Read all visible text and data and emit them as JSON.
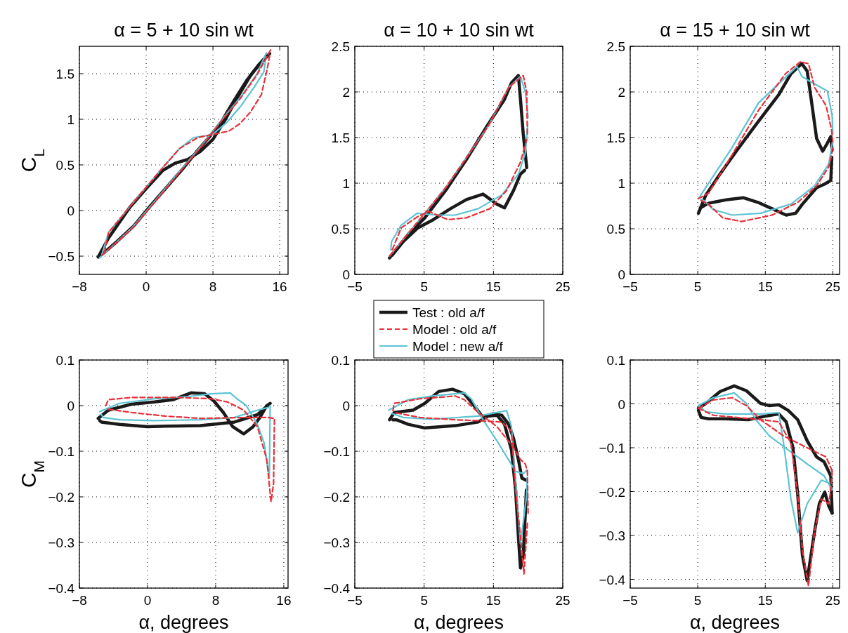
{
  "chart_data": [
    {
      "type": "line",
      "title": "α = 5 + 10 sin wt",
      "ylabel": "C$_{L}$",
      "xlim": [
        -8,
        17
      ],
      "xticks": [
        -8,
        0,
        8,
        16
      ],
      "ylim": [
        -0.7,
        1.8
      ],
      "yticks": [
        -0.5,
        0,
        0.5,
        1,
        1.5
      ],
      "grid": true,
      "series": [
        {
          "color": "#1a1a1a",
          "line_style": "solid",
          "x": [
            -5.75,
            -4.5,
            -2,
            0,
            2,
            3.5,
            5,
            6.5,
            8,
            9.5,
            11,
            12.5,
            14,
            14.8
          ],
          "values": [
            -0.51,
            -0.3,
            0.03,
            0.24,
            0.44,
            0.52,
            0.56,
            0.65,
            0.78,
            1.0,
            1.25,
            1.48,
            1.65,
            1.72
          ]
        },
        {
          "color": "#1a1a1a",
          "line_style": "solid",
          "x": [
            14.5,
            13.5,
            12,
            10.5,
            9,
            7.5,
            6,
            4.5,
            2.5,
            0.5,
            -1.5,
            -3.5,
            -5,
            -5.45
          ],
          "values": [
            1.69,
            1.6,
            1.42,
            1.2,
            0.97,
            0.8,
            0.64,
            0.47,
            0.26,
            0.05,
            -0.17,
            -0.34,
            -0.46,
            -0.49
          ]
        },
        {
          "color": "#e8303a",
          "line_style": "dashed",
          "x": [
            -5.3,
            -1.7,
            1.2,
            4,
            6.8,
            9,
            11.3,
            13.3,
            14.9
          ],
          "values": [
            -0.49,
            -0.2,
            0.11,
            0.42,
            0.72,
            0.98,
            1.23,
            1.49,
            1.76
          ]
        },
        {
          "color": "#e8303a",
          "line_style": "dashed",
          "x": [
            14.8,
            14.5,
            13.8,
            12.5,
            11.2,
            9.9,
            8.3,
            6.2,
            4,
            1.7,
            -1.7,
            -4.5,
            -5
          ],
          "values": [
            1.7,
            1.55,
            1.27,
            1.08,
            0.95,
            0.87,
            0.84,
            0.8,
            0.68,
            0.44,
            0.07,
            -0.24,
            -0.46
          ]
        },
        {
          "color": "#5bc4d4",
          "line_style": "solid",
          "x": [
            -5.6,
            -1.7,
            1.2,
            4,
            6.8,
            9,
            11.3,
            13.3,
            14.4
          ],
          "values": [
            -0.52,
            -0.19,
            0.12,
            0.43,
            0.73,
            0.99,
            1.24,
            1.5,
            1.73
          ]
        },
        {
          "color": "#5bc4d4",
          "line_style": "solid",
          "x": [
            14.35,
            14.1,
            13,
            11.3,
            9.6,
            7.9,
            5.7,
            4,
            1.7,
            -1.7,
            -4.5,
            -5.3
          ],
          "values": [
            1.68,
            1.52,
            1.36,
            1.14,
            0.96,
            0.83,
            0.8,
            0.68,
            0.44,
            0.07,
            -0.24,
            -0.48
          ]
        }
      ]
    },
    {
      "type": "line",
      "title": "α = 10 + 10 sin wt",
      "xlim": [
        -5,
        25
      ],
      "xticks": [
        -5,
        5,
        15,
        25
      ],
      "ylim": [
        0,
        2.5
      ],
      "yticks": [
        0,
        0.5,
        1,
        1.5,
        2,
        2.5
      ],
      "grid": true,
      "series": [
        {
          "color": "#1a1a1a",
          "line_style": "solid",
          "x": [
            0,
            2.7,
            5.1,
            8.1,
            11.1,
            14.2,
            16.6,
            17.6,
            18.6,
            18.9,
            19.3,
            19.8
          ],
          "values": [
            0.18,
            0.44,
            0.62,
            0.92,
            1.26,
            1.64,
            1.92,
            2.1,
            2.18,
            1.92,
            1.54,
            1.17
          ]
        },
        {
          "color": "#1a1a1a",
          "line_style": "solid",
          "x": [
            19.5,
            18.9,
            17.9,
            16.6,
            15.5,
            13.5,
            11.1,
            8.8,
            6.1,
            4.1,
            2,
            0.4
          ],
          "values": [
            1.14,
            1.1,
            0.92,
            0.73,
            0.77,
            0.88,
            0.82,
            0.72,
            0.59,
            0.51,
            0.36,
            0.21
          ]
        },
        {
          "color": "#e8303a",
          "line_style": "dashed",
          "x": [
            0,
            5.1,
            8.1,
            14.2,
            17.2,
            19.3,
            19.8,
            19.9
          ],
          "values": [
            0.2,
            0.67,
            0.95,
            1.62,
            2.05,
            2.18,
            2.0,
            1.54
          ]
        },
        {
          "color": "#e8303a",
          "line_style": "dashed",
          "x": [
            19.8,
            18.9,
            16.9,
            14.5,
            11.1,
            8.4,
            5.7,
            4,
            1.7,
            0.4
          ],
          "values": [
            1.48,
            1.23,
            0.92,
            0.72,
            0.62,
            0.6,
            0.69,
            0.63,
            0.51,
            0.27
          ]
        },
        {
          "color": "#5bc4d4",
          "line_style": "solid",
          "x": [
            0,
            5.1,
            8.1,
            14.2,
            17.2,
            18.9,
            19.6,
            20
          ],
          "values": [
            0.2,
            0.67,
            0.95,
            1.62,
            2.05,
            2.17,
            2.0,
            1.72
          ]
        },
        {
          "color": "#5bc4d4",
          "line_style": "solid",
          "x": [
            19.95,
            19.6,
            18.6,
            16.2,
            12.8,
            9.5,
            6.8,
            4,
            1.7,
            0.3,
            0.2
          ],
          "values": [
            1.65,
            1.33,
            1.1,
            0.87,
            0.72,
            0.65,
            0.65,
            0.67,
            0.54,
            0.36,
            0.27
          ]
        }
      ]
    },
    {
      "type": "line",
      "title": "α = 15 + 10 sin wt",
      "xlim": [
        -5,
        26
      ],
      "xticks": [
        -5,
        5,
        15,
        25
      ],
      "ylim": [
        0,
        2.5
      ],
      "yticks": [
        0,
        0.5,
        1,
        1.5,
        2,
        2.5
      ],
      "grid": true,
      "series": [
        {
          "color": "#1a1a1a",
          "line_style": "solid",
          "x": [
            5.1,
            6.2,
            8.3,
            10.8,
            13.6,
            17,
            18.8,
            20.4,
            21.2,
            21.8,
            22.6,
            23.5,
            24.2,
            24.7,
            24.9
          ],
          "values": [
            0.67,
            0.87,
            1.1,
            1.36,
            1.64,
            1.97,
            2.2,
            2.31,
            2.23,
            1.92,
            1.49,
            1.35,
            1.44,
            1.51,
            1.36
          ]
        },
        {
          "color": "#1a1a1a",
          "line_style": "solid",
          "x": [
            24.85,
            24.7,
            23.8,
            22.6,
            20.5,
            19.5,
            18.1,
            16,
            13.9,
            11.8,
            9.4,
            6.6,
            5.4
          ],
          "values": [
            1.28,
            1.03,
            0.99,
            0.95,
            0.77,
            0.67,
            0.65,
            0.72,
            0.79,
            0.84,
            0.82,
            0.78,
            0.73
          ]
        },
        {
          "color": "#e8303a",
          "line_style": "dashed",
          "x": [
            5.1,
            6.6,
            10,
            14,
            18,
            20.2,
            21.4,
            22.3,
            24,
            24.8,
            25
          ],
          "values": [
            0.83,
            0.89,
            1.3,
            1.8,
            2.2,
            2.33,
            2.31,
            2.05,
            1.85,
            1.59,
            1.45
          ]
        },
        {
          "color": "#e8303a",
          "line_style": "dashed",
          "x": [
            24.95,
            24.8,
            24.4,
            22.6,
            19.8,
            16,
            11.5,
            8.7,
            6.6,
            5.5
          ],
          "values": [
            1.38,
            1.3,
            1.18,
            0.97,
            0.79,
            0.65,
            0.58,
            0.62,
            0.77,
            0.81
          ]
        },
        {
          "color": "#5bc4d4",
          "line_style": "solid",
          "x": [
            5.1,
            10,
            14,
            19.7,
            20.4,
            22,
            24.2,
            24.9,
            25
          ],
          "values": [
            0.83,
            1.38,
            1.88,
            2.28,
            2.17,
            2.1,
            2.01,
            1.74,
            1.54
          ]
        },
        {
          "color": "#5bc4d4",
          "line_style": "solid",
          "x": [
            24.95,
            24.4,
            22.3,
            18.8,
            14.3,
            10.1,
            7.3,
            5.9,
            5.5
          ],
          "values": [
            1.45,
            1.21,
            0.97,
            0.77,
            0.67,
            0.65,
            0.71,
            0.81,
            0.82
          ]
        }
      ]
    },
    {
      "type": "line",
      "xlabel": "α, degrees",
      "ylabel": "C$_{M}$",
      "xlim": [
        -8,
        16.5
      ],
      "xticks": [
        -8,
        0,
        8,
        16
      ],
      "ylim": [
        -0.4,
        0.1
      ],
      "yticks": [
        -0.4,
        -0.3,
        -0.2,
        -0.1,
        0,
        0.1
      ],
      "grid": true,
      "series": [
        {
          "color": "#1a1a1a",
          "line_style": "solid",
          "x": [
            -5.8,
            -4.6,
            -1.9,
            0.8,
            3,
            5.1,
            6.7,
            7.8,
            8.9,
            10,
            11.3,
            12.4,
            13.2,
            14,
            14.4
          ],
          "values": [
            -0.028,
            -0.01,
            0.003,
            0.008,
            0.013,
            0.028,
            0.026,
            0.01,
            -0.015,
            -0.046,
            -0.062,
            -0.046,
            -0.026,
            0,
            0.005
          ]
        },
        {
          "color": "#1a1a1a",
          "line_style": "solid",
          "x": [
            14.1,
            12.9,
            10.2,
            6.2,
            2.1,
            0,
            -3.3,
            -5.4,
            -5.6
          ],
          "values": [
            0,
            -0.02,
            -0.036,
            -0.044,
            -0.045,
            -0.046,
            -0.041,
            -0.036,
            -0.033
          ]
        },
        {
          "color": "#e8303a",
          "line_style": "dashed",
          "x": [
            -4.9,
            -4.6,
            -1.9,
            3.5,
            7.5,
            9.4,
            11.3,
            12.9,
            14,
            14.5
          ],
          "values": [
            0,
            0.013,
            0.018,
            0.018,
            0.015,
            0.008,
            -0.01,
            -0.046,
            -0.118,
            -0.21
          ]
        },
        {
          "color": "#e8303a",
          "line_style": "dashed",
          "x": [
            14.55,
            14.8,
            14.9
          ],
          "values": [
            -0.205,
            -0.17,
            -0.031
          ]
        },
        {
          "color": "#e8303a",
          "line_style": "dashed",
          "x": [
            14.75,
            14.2,
            11.6,
            6.2,
            2.1,
            -1.9,
            -4.6
          ],
          "values": [
            -0.028,
            -0.026,
            -0.026,
            -0.028,
            -0.023,
            -0.015,
            -0.008
          ]
        },
        {
          "color": "#5bc4d4",
          "line_style": "solid",
          "x": [
            -5.6,
            -3.3,
            0.8,
            4.8,
            7.5,
            9.7,
            10.5,
            11.6,
            12.9,
            13.7,
            14.3,
            14.4
          ],
          "values": [
            -0.013,
            0.005,
            0.015,
            0.02,
            0.026,
            0.028,
            0.015,
            0,
            -0.041,
            -0.082,
            -0.159,
            0
          ]
        },
        {
          "color": "#5bc4d4",
          "line_style": "solid",
          "x": [
            14.2,
            12.9,
            10.2,
            6.2,
            0.8,
            -3.3,
            -5.2,
            -5.45
          ],
          "values": [
            -0.004,
            -0.01,
            -0.026,
            -0.031,
            -0.033,
            -0.031,
            -0.026,
            -0.019
          ]
        }
      ]
    },
    {
      "type": "line",
      "xlabel": "α, degrees",
      "xlim": [
        -5,
        25
      ],
      "xticks": [
        -5,
        5,
        15,
        25
      ],
      "ylim": [
        -0.4,
        0.1
      ],
      "yticks": [
        -0.4,
        -0.3,
        -0.2,
        -0.1,
        0,
        0.1
      ],
      "grid": true,
      "legend": "top",
      "series": [
        {
          "name": "Test : old a/f",
          "color": "#1a1a1a",
          "line_style": "solid",
          "x": [
            0,
            0.7,
            3.4,
            5.1,
            7.1,
            9.1,
            10.8,
            12.2,
            13.5,
            14.9,
            16.2,
            17.2,
            17.9,
            18.6,
            19.1,
            19.8
          ],
          "values": [
            -0.031,
            -0.015,
            -0.01,
            0.005,
            0.031,
            0.036,
            0.026,
            0,
            -0.026,
            -0.018,
            -0.021,
            -0.041,
            -0.072,
            -0.118,
            -0.159,
            -0.164
          ]
        },
        {
          "color": "#1a1a1a",
          "line_style": "solid",
          "x": [
            19.75,
            19.6,
            19.3,
            18.9,
            18.6,
            18.2,
            17.6,
            16.6,
            15.5,
            14.2,
            12.8,
            9.5,
            5.1,
            2.7,
            1,
            0.5
          ],
          "values": [
            -0.185,
            -0.236,
            -0.328,
            -0.356,
            -0.287,
            -0.185,
            -0.097,
            -0.041,
            -0.021,
            -0.023,
            -0.036,
            -0.044,
            -0.049,
            -0.041,
            -0.031,
            -0.031
          ]
        },
        {
          "name": "Model : old a/f",
          "color": "#e8303a",
          "line_style": "dashed",
          "x": [
            0.5,
            0.7,
            4.4,
            9.5,
            10.8,
            12.8,
            15.5,
            17.9,
            18.9,
            19.6,
            19.9,
            20
          ],
          "values": [
            -0.011,
            0.005,
            0.015,
            0.021,
            0.013,
            -0.015,
            -0.046,
            -0.092,
            -0.118,
            -0.128,
            -0.144,
            -0.236
          ]
        },
        {
          "color": "#e8303a",
          "line_style": "dashed",
          "x": [
            19.9,
            19.4,
            18.9,
            18.2,
            17.6,
            16.2,
            12.8,
            9.5,
            4.4,
            1
          ],
          "values": [
            -0.258,
            -0.369,
            -0.287,
            -0.185,
            -0.056,
            -0.036,
            -0.033,
            -0.031,
            -0.026,
            -0.016
          ]
        },
        {
          "name": "Model : new a/f",
          "color": "#5bc4d4",
          "line_style": "solid",
          "x": [
            -0.1,
            2.7,
            6.1,
            10.8,
            11.8,
            13.5,
            15.5,
            18.2,
            19.3,
            19.9
          ],
          "values": [
            -0.01,
            0.013,
            0.021,
            0.028,
            0.015,
            -0.031,
            -0.077,
            -0.144,
            -0.149,
            -0.141
          ]
        },
        {
          "color": "#5bc4d4",
          "line_style": "solid",
          "x": [
            19.87,
            19.8,
            18.9,
            18.2,
            17.6,
            16.9,
            12.8,
            6.1,
            2,
            0.3
          ],
          "values": [
            -0.157,
            -0.195,
            -0.303,
            -0.164,
            -0.046,
            -0.011,
            -0.023,
            -0.03,
            -0.026,
            -0.017
          ]
        }
      ]
    },
    {
      "type": "line",
      "xlabel": "α, degrees",
      "xlim": [
        -5,
        26
      ],
      "xticks": [
        -5,
        5,
        15,
        25
      ],
      "ylim": [
        -0.42,
        0.1
      ],
      "yticks": [
        -0.4,
        -0.3,
        -0.2,
        -0.1,
        0,
        0.1
      ],
      "grid": true,
      "series": [
        {
          "color": "#1a1a1a",
          "line_style": "solid",
          "x": [
            5.1,
            6.2,
            8.3,
            10.4,
            12.2,
            14.3,
            15.6,
            17,
            18.4,
            19.8,
            21.2,
            22.6,
            23.7,
            24.7,
            24.9
          ],
          "values": [
            -0.01,
            0.001,
            0.028,
            0.041,
            0.03,
            0.001,
            -0.004,
            -0.002,
            -0.015,
            -0.036,
            -0.084,
            -0.121,
            -0.132,
            -0.164,
            -0.249
          ]
        },
        {
          "color": "#1a1a1a",
          "line_style": "solid",
          "x": [
            24.9,
            24.4,
            23.8,
            23,
            22.3,
            21.2,
            20.5,
            19.8,
            19.1,
            18.1,
            17,
            15,
            12.5,
            9,
            6.6,
            5.5,
            5.1
          ],
          "values": [
            -0.249,
            -0.233,
            -0.201,
            -0.228,
            -0.291,
            -0.403,
            -0.345,
            -0.206,
            -0.1,
            -0.041,
            -0.023,
            -0.028,
            -0.036,
            -0.034,
            -0.034,
            -0.031,
            -0.015
          ]
        },
        {
          "color": "#e8303a",
          "line_style": "dashed",
          "x": [
            5.1,
            7.3,
            10.1,
            12.2,
            14.3,
            17.7,
            21.2,
            24,
            24.9
          ],
          "values": [
            -0.01,
            0.009,
            0.014,
            -0.004,
            -0.036,
            -0.073,
            -0.1,
            -0.121,
            -0.153
          ]
        },
        {
          "color": "#e8303a",
          "line_style": "dashed",
          "x": [
            24.9,
            24.7,
            24.4,
            23.3,
            22.3,
            21.4,
            20.5,
            19.8,
            18.8,
            17,
            14.3,
            10.8,
            7.3,
            5.1
          ],
          "values": [
            -0.153,
            -0.196,
            -0.228,
            -0.217,
            -0.291,
            -0.415,
            -0.334,
            -0.206,
            -0.089,
            -0.041,
            -0.036,
            -0.031,
            -0.026,
            -0.01
          ]
        },
        {
          "color": "#5bc4d4",
          "line_style": "solid",
          "x": [
            5.1,
            7.3,
            10.4,
            12.2,
            13.6,
            15.6,
            18.4,
            21.2,
            23.7,
            24.9
          ],
          "values": [
            -0.004,
            0.014,
            0.025,
            0.001,
            -0.036,
            -0.073,
            -0.105,
            -0.137,
            -0.164,
            -0.196
          ]
        },
        {
          "color": "#5bc4d4",
          "line_style": "solid",
          "x": [
            24.9,
            24.4,
            23.3,
            21.2,
            19.8,
            18.8,
            17.7,
            17,
            14.3,
            9,
            6.2,
            5.1
          ],
          "values": [
            -0.196,
            -0.18,
            -0.174,
            -0.228,
            -0.294,
            -0.217,
            -0.089,
            -0.02,
            -0.023,
            -0.023,
            -0.018,
            -0.004
          ]
        }
      ]
    }
  ]
}
